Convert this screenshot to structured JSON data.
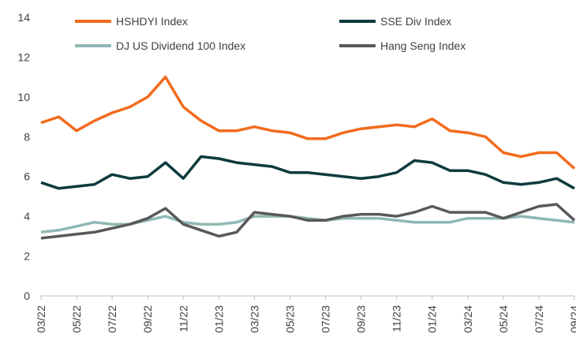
{
  "chart_data": {
    "type": "line",
    "x": [
      "03/22",
      "04/22",
      "05/22",
      "06/22",
      "07/22",
      "08/22",
      "09/22",
      "10/22",
      "11/22",
      "12/22",
      "01/23",
      "02/23",
      "03/23",
      "04/23",
      "05/23",
      "06/23",
      "07/23",
      "08/23",
      "09/23",
      "10/23",
      "11/23",
      "12/23",
      "01/24",
      "02/24",
      "03/24",
      "04/24",
      "05/24",
      "06/24",
      "07/24",
      "08/24",
      "09/24"
    ],
    "xticks": [
      "03/22",
      "05/22",
      "07/22",
      "09/22",
      "11/22",
      "01/23",
      "03/23",
      "05/23",
      "07/23",
      "09/23",
      "11/23",
      "01/24",
      "03/24",
      "05/24",
      "07/24",
      "09/24"
    ],
    "ylim": [
      0,
      14
    ],
    "yticks": [
      0,
      2,
      4,
      6,
      8,
      10,
      12,
      14
    ],
    "legend": "top",
    "series": [
      {
        "name": "HSHDYI Index",
        "color": "#f26b1d",
        "values": [
          8.7,
          9.0,
          8.3,
          8.8,
          9.2,
          9.5,
          10.0,
          11.0,
          9.5,
          8.8,
          8.3,
          8.3,
          8.5,
          8.3,
          8.2,
          7.9,
          7.9,
          8.2,
          8.4,
          8.5,
          8.6,
          8.5,
          8.9,
          8.3,
          8.2,
          8.0,
          7.2,
          7.0,
          7.2,
          7.2,
          6.4
        ]
      },
      {
        "name": "SSE Div Index",
        "color": "#0d3b3e",
        "values": [
          5.7,
          5.4,
          5.5,
          5.6,
          6.1,
          5.9,
          6.0,
          6.7,
          5.9,
          7.0,
          6.9,
          6.7,
          6.6,
          6.5,
          6.2,
          6.2,
          6.1,
          6.0,
          5.9,
          6.0,
          6.2,
          6.8,
          6.7,
          6.3,
          6.3,
          6.1,
          5.7,
          5.6,
          5.7,
          5.9,
          5.4
        ]
      },
      {
        "name": "DJ US Dividend 100 Index",
        "color": "#8fb8b4",
        "values": [
          3.2,
          3.3,
          3.5,
          3.7,
          3.6,
          3.6,
          3.8,
          4.0,
          3.7,
          3.6,
          3.6,
          3.7,
          4.0,
          4.0,
          4.0,
          3.9,
          3.8,
          3.9,
          3.9,
          3.9,
          3.8,
          3.7,
          3.7,
          3.7,
          3.9,
          3.9,
          3.9,
          4.0,
          3.9,
          3.8,
          3.7
        ]
      },
      {
        "name": "Hang Seng Index",
        "color": "#595959",
        "values": [
          2.9,
          3.0,
          3.1,
          3.2,
          3.4,
          3.6,
          3.9,
          4.4,
          3.6,
          3.3,
          3.0,
          3.2,
          4.2,
          4.1,
          4.0,
          3.8,
          3.8,
          4.0,
          4.1,
          4.1,
          4.0,
          4.2,
          4.5,
          4.2,
          4.2,
          4.2,
          3.9,
          4.2,
          4.5,
          4.6,
          3.8
        ]
      }
    ]
  }
}
